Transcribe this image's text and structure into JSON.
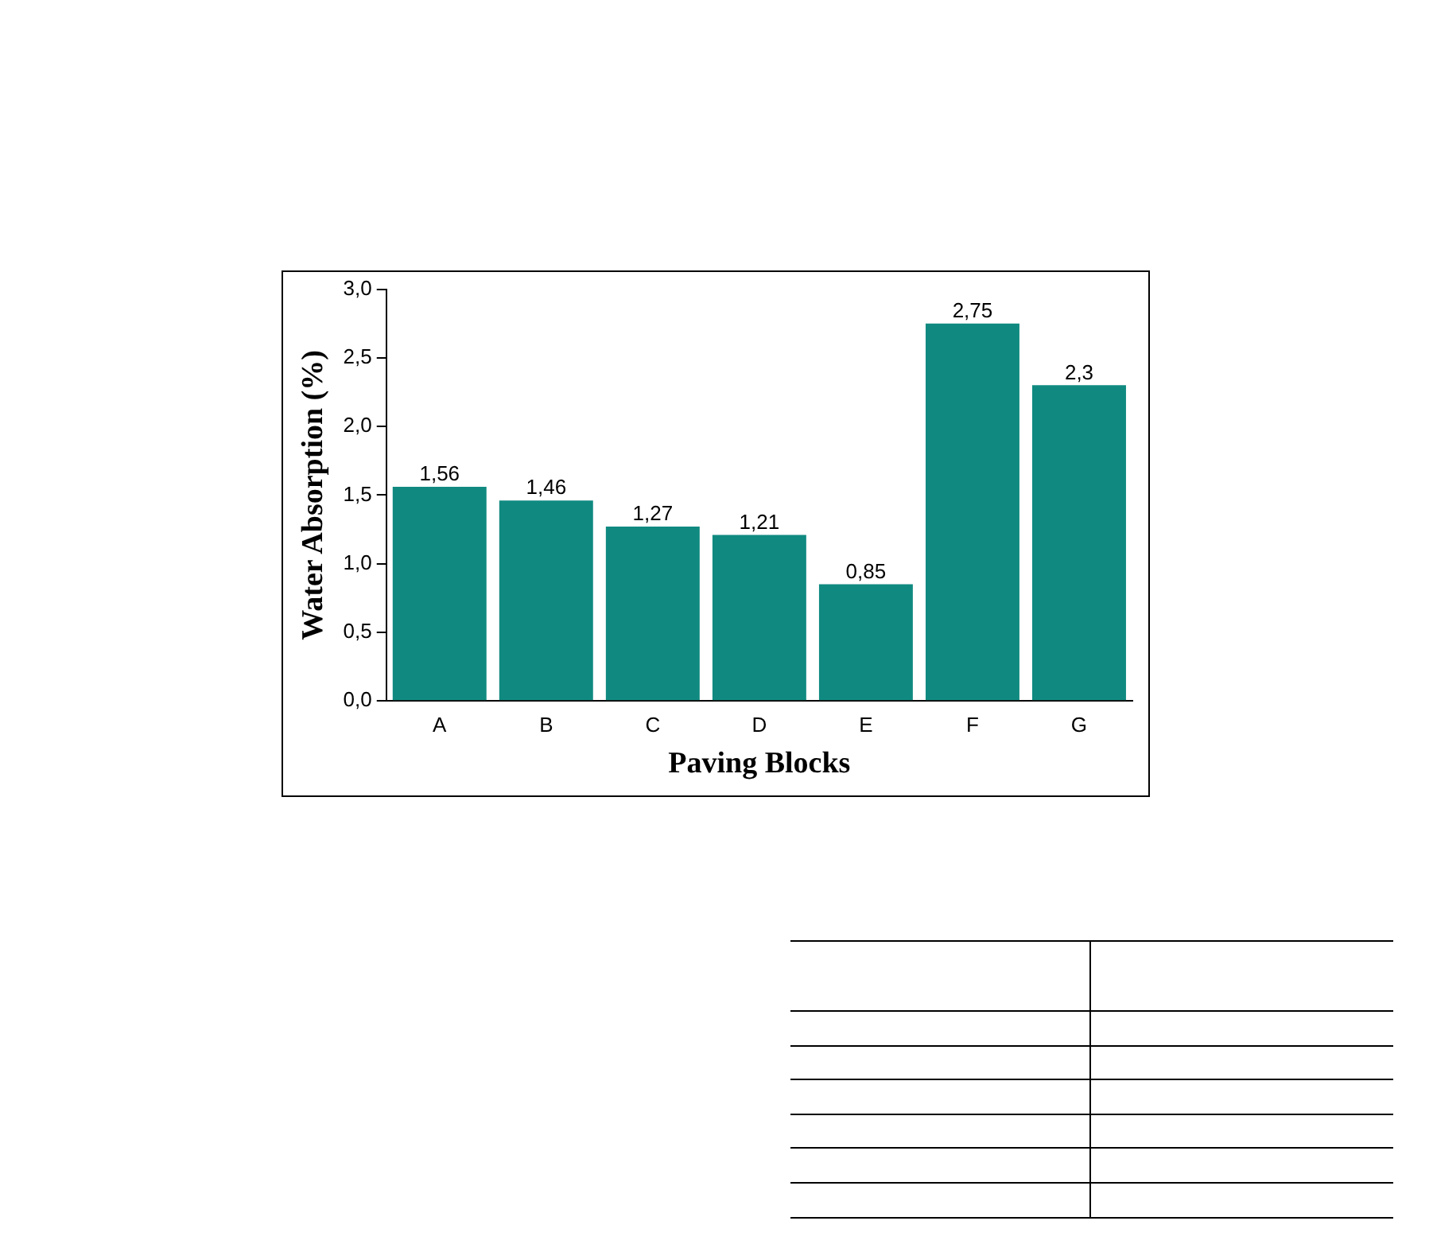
{
  "chart_data": {
    "type": "bar",
    "xlabel": "Paving Blocks",
    "ylabel": "Water Absorption (%)",
    "categories": [
      "A",
      "B",
      "C",
      "D",
      "E",
      "F",
      "G"
    ],
    "values": [
      1.56,
      1.46,
      1.27,
      1.21,
      0.85,
      2.75,
      2.3
    ],
    "value_labels": [
      "1,56",
      "1,46",
      "1,27",
      "1,21",
      "0,85",
      "2,75",
      "2,3"
    ],
    "color": "#108a80",
    "ylim": [
      0,
      3
    ],
    "yticks": [
      {
        "value": 0,
        "label": "0,0"
      },
      {
        "value": 0.5,
        "label": "0,5"
      },
      {
        "value": 1,
        "label": "1,0"
      },
      {
        "value": 1.5,
        "label": "1,5"
      },
      {
        "value": 2,
        "label": "2,0"
      },
      {
        "value": 2.5,
        "label": "2,5"
      },
      {
        "value": 3,
        "label": "3,0"
      }
    ],
    "grid": false,
    "legend": false
  }
}
